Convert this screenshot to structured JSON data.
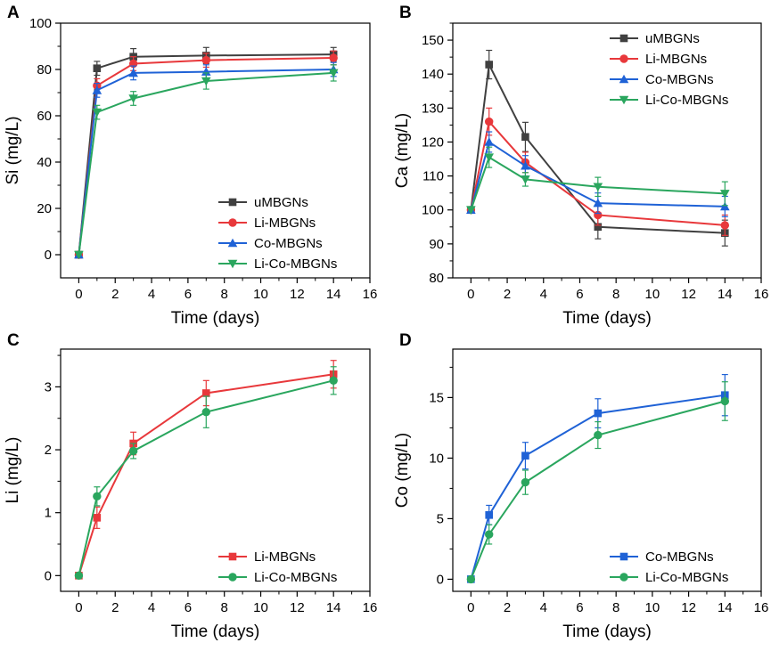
{
  "colors": {
    "uMBGNs": "#404040",
    "Li-MBGNs": "#e8383b",
    "Co-MBGNs": "#1f62d6",
    "Li-Co-MBGNs": "#2aa65e"
  },
  "chart_data": [
    {
      "id": "A",
      "panel_letter": "A",
      "type": "line",
      "xlabel": "Time (days)",
      "ylabel": "Si (mg/L)",
      "xlim": [
        -1,
        16
      ],
      "ylim": [
        -10,
        100
      ],
      "xticks": [
        0,
        2,
        4,
        6,
        8,
        10,
        12,
        14,
        16
      ],
      "yticks": [
        0,
        20,
        40,
        60,
        80,
        100
      ],
      "legend_position": "bottom-right",
      "series": [
        {
          "name": "uMBGNs",
          "color": "#404040",
          "marker": "square",
          "x": [
            0,
            1,
            3,
            7,
            14
          ],
          "y": [
            0,
            80.5,
            85.5,
            86,
            86.5
          ],
          "err": [
            0,
            3,
            3.5,
            3.5,
            3
          ]
        },
        {
          "name": "Li-MBGNs",
          "color": "#e8383b",
          "marker": "circle",
          "x": [
            0,
            1,
            3,
            7,
            14
          ],
          "y": [
            0,
            73,
            82.5,
            84,
            85
          ],
          "err": [
            0,
            3,
            3,
            3,
            3
          ]
        },
        {
          "name": "Co-MBGNs",
          "color": "#1f62d6",
          "marker": "triangle-up",
          "x": [
            0,
            1,
            3,
            7,
            14
          ],
          "y": [
            0,
            71,
            78.5,
            79,
            80
          ],
          "err": [
            0,
            3,
            3,
            3,
            3
          ]
        },
        {
          "name": "Li-Co-MBGNs",
          "color": "#2aa65e",
          "marker": "triangle-down",
          "x": [
            0,
            1,
            3,
            7,
            14
          ],
          "y": [
            0,
            61.5,
            67.5,
            75,
            78.5
          ],
          "err": [
            0,
            3,
            3,
            3.5,
            3.5
          ]
        }
      ]
    },
    {
      "id": "B",
      "panel_letter": "B",
      "type": "line",
      "xlabel": "Time (days)",
      "ylabel": "Ca (mg/L)",
      "xlim": [
        -1,
        16
      ],
      "ylim": [
        80,
        155
      ],
      "xticks": [
        0,
        2,
        4,
        6,
        8,
        10,
        12,
        14,
        16
      ],
      "yticks": [
        80,
        90,
        100,
        110,
        120,
        130,
        140,
        150
      ],
      "legend_position": "top-right",
      "series": [
        {
          "name": "uMBGNs",
          "color": "#404040",
          "marker": "square",
          "x": [
            0,
            1,
            3,
            7,
            14
          ],
          "y": [
            100,
            142.8,
            121.5,
            95,
            93.2
          ],
          "err": [
            0,
            4.2,
            4.3,
            3.5,
            3.8
          ]
        },
        {
          "name": "Li-MBGNs",
          "color": "#e8383b",
          "marker": "circle",
          "x": [
            0,
            1,
            3,
            7,
            14
          ],
          "y": [
            100,
            126,
            114,
            98.5,
            95.5
          ],
          "err": [
            0,
            4,
            3,
            3,
            3
          ]
        },
        {
          "name": "Co-MBGNs",
          "color": "#1f62d6",
          "marker": "triangle-up",
          "x": [
            0,
            1,
            3,
            7,
            14
          ],
          "y": [
            100,
            120,
            113,
            102,
            101
          ],
          "err": [
            0,
            3,
            3,
            3,
            3
          ]
        },
        {
          "name": "Li-Co-MBGNs",
          "color": "#2aa65e",
          "marker": "triangle-down",
          "x": [
            0,
            1,
            3,
            7,
            14
          ],
          "y": [
            100,
            115.5,
            109,
            106.8,
            104.8
          ],
          "err": [
            0,
            3,
            2,
            2.8,
            3.5
          ]
        }
      ]
    },
    {
      "id": "C",
      "panel_letter": "C",
      "type": "line",
      "xlabel": "Time (days)",
      "ylabel": "Li (mg/L)",
      "xlim": [
        -1,
        16
      ],
      "ylim": [
        -0.25,
        3.6
      ],
      "xticks": [
        0,
        2,
        4,
        6,
        8,
        10,
        12,
        14,
        16
      ],
      "yticks": [
        0,
        1,
        2,
        3
      ],
      "legend_position": "bottom-right",
      "series": [
        {
          "name": "Li-MBGNs",
          "color": "#e8383b",
          "marker": "square",
          "x": [
            0,
            1,
            3,
            7,
            14
          ],
          "y": [
            0,
            0.92,
            2.1,
            2.9,
            3.2
          ],
          "err": [
            0,
            0.17,
            0.18,
            0.2,
            0.22
          ]
        },
        {
          "name": "Li-Co-MBGNs",
          "color": "#2aa65e",
          "marker": "circle",
          "x": [
            0,
            1,
            3,
            7,
            14
          ],
          "y": [
            0,
            1.26,
            1.98,
            2.6,
            3.1
          ],
          "err": [
            0,
            0.15,
            0.12,
            0.25,
            0.22
          ]
        }
      ]
    },
    {
      "id": "D",
      "panel_letter": "D",
      "type": "line",
      "xlabel": "Time (days)",
      "ylabel": "Co (mg/L)",
      "xlim": [
        -1,
        16
      ],
      "ylim": [
        -1,
        19
      ],
      "xticks": [
        0,
        2,
        4,
        6,
        8,
        10,
        12,
        14,
        16
      ],
      "yticks": [
        0,
        5,
        10,
        15
      ],
      "legend_position": "bottom-right",
      "series": [
        {
          "name": "Co-MBGNs",
          "color": "#1f62d6",
          "marker": "square",
          "x": [
            0,
            1,
            3,
            7,
            14
          ],
          "y": [
            0,
            5.3,
            10.2,
            13.7,
            15.2
          ],
          "err": [
            0,
            0.8,
            1.1,
            1.2,
            1.7
          ]
        },
        {
          "name": "Li-Co-MBGNs",
          "color": "#2aa65e",
          "marker": "circle",
          "x": [
            0,
            1,
            3,
            7,
            14
          ],
          "y": [
            0,
            3.7,
            8.0,
            11.9,
            14.7
          ],
          "err": [
            0,
            0.8,
            1.0,
            1.1,
            1.6
          ]
        }
      ]
    }
  ]
}
